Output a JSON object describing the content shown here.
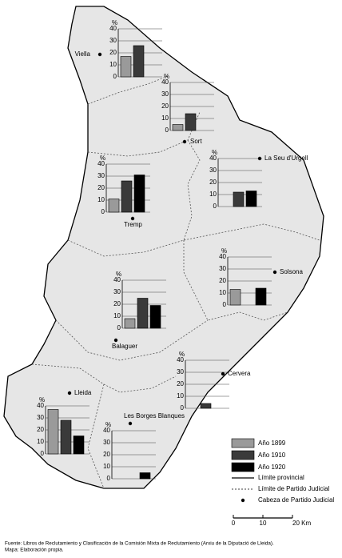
{
  "axis_unit": "%",
  "yticks": [
    0,
    10,
    20,
    30,
    40
  ],
  "series": [
    {
      "name": "Año 1899",
      "color": "#9a9a9a"
    },
    {
      "name": "Año 1910",
      "color": "#3a3a3a"
    },
    {
      "name": "Año 1920",
      "color": "#000000"
    }
  ],
  "districts": [
    {
      "name": "Viella",
      "values": [
        17,
        26,
        null
      ]
    },
    {
      "name": "Sort",
      "values": [
        5,
        14,
        null
      ]
    },
    {
      "name": "Tremp",
      "values": [
        11,
        26,
        31
      ]
    },
    {
      "name": "La Seu d'Urgell",
      "values": [
        null,
        12,
        13
      ]
    },
    {
      "name": "Solsona",
      "values": [
        13,
        null,
        14
      ]
    },
    {
      "name": "Balaguer",
      "values": [
        8,
        25,
        19
      ]
    },
    {
      "name": "Cervera",
      "values": [
        null,
        4,
        null
      ]
    },
    {
      "name": "Lleida",
      "values": [
        37,
        28,
        15
      ]
    },
    {
      "name": "Les Borges Blanques",
      "values": [
        null,
        null,
        5
      ]
    }
  ],
  "legend_lines": [
    "Límite provincial",
    "Límite de Partido Judicial",
    "Cabeza de Partido Judicial"
  ],
  "scale": {
    "ticks": [
      0,
      10,
      {
        "value": 20,
        "label": "20 Km"
      }
    ]
  },
  "source": [
    "Fuente: Libros de Reclutamiento y Clasificación de la Comisión Mixta de Reclutamiento (Arxiu de la Diputació de Lleida).",
    "Mapa: Elaboración propia."
  ]
}
